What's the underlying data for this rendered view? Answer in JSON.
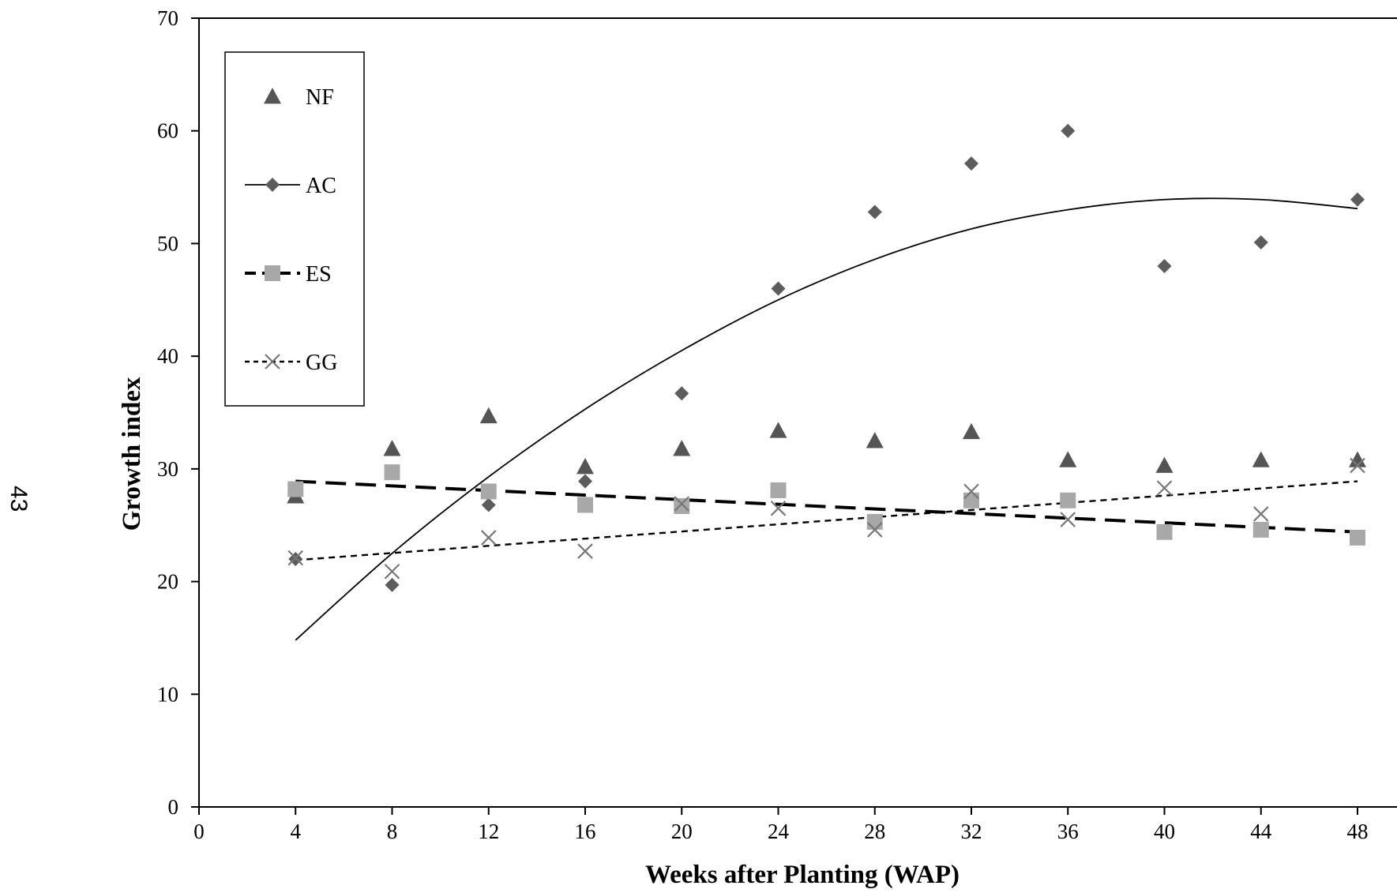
{
  "page_number": "43",
  "chart_data": {
    "type": "scatter",
    "title": "",
    "xlabel": "Weeks after Planting (WAP)",
    "ylabel": "Growth index",
    "xlim": [
      0,
      48
    ],
    "ylim": [
      0,
      70
    ],
    "x_ticks": [
      0,
      4,
      8,
      12,
      16,
      20,
      24,
      28,
      32,
      36,
      40,
      44,
      48
    ],
    "y_ticks": [
      0,
      10,
      20,
      30,
      40,
      50,
      60,
      70
    ],
    "grid": false,
    "legend_position": "top-left",
    "x": [
      4,
      8,
      12,
      16,
      20,
      24,
      28,
      32,
      36,
      40,
      44,
      48
    ],
    "series": [
      {
        "name": "NF",
        "marker": "triangle",
        "color": "#555555",
        "values": [
          27.6,
          31.8,
          34.7,
          30.2,
          31.8,
          33.4,
          32.5,
          33.3,
          30.8,
          30.3,
          30.8,
          30.8
        ],
        "trendline": null
      },
      {
        "name": "AC",
        "marker": "diamond",
        "color": "#5c5c5c",
        "values": [
          22.0,
          19.7,
          26.8,
          28.9,
          36.7,
          46.0,
          52.8,
          57.1,
          60.0,
          48.0,
          50.1,
          53.9
        ],
        "trendline": {
          "type": "poly2",
          "style": "solid",
          "color": "#000000",
          "points": [
            [
              4,
              14.8
            ],
            [
              8,
              22.5
            ],
            [
              12,
              29.3
            ],
            [
              16,
              35.3
            ],
            [
              20,
              40.5
            ],
            [
              24,
              45.0
            ],
            [
              28,
              48.6
            ],
            [
              32,
              51.3
            ],
            [
              36,
              53.0
            ],
            [
              40,
              53.9
            ],
            [
              44,
              53.9
            ],
            [
              48,
              53.1
            ]
          ]
        }
      },
      {
        "name": "ES",
        "marker": "square",
        "color": "#a8a8a8",
        "values": [
          28.2,
          29.7,
          28.0,
          26.8,
          26.7,
          28.1,
          25.3,
          27.2,
          27.2,
          24.4,
          24.6,
          23.9
        ],
        "trendline": {
          "type": "linear",
          "style": "long-dash",
          "color": "#000000",
          "points": [
            [
              4,
              28.9
            ],
            [
              48,
              24.4
            ]
          ]
        }
      },
      {
        "name": "GG",
        "marker": "x",
        "color": "#777777",
        "values": [
          22.1,
          20.9,
          23.9,
          22.7,
          26.9,
          26.5,
          24.6,
          28.0,
          25.5,
          28.3,
          26.0,
          30.3
        ],
        "trendline": {
          "type": "linear",
          "style": "short-dash",
          "color": "#000000",
          "points": [
            [
              4,
              21.9
            ],
            [
              48,
              28.9
            ]
          ]
        }
      }
    ]
  }
}
